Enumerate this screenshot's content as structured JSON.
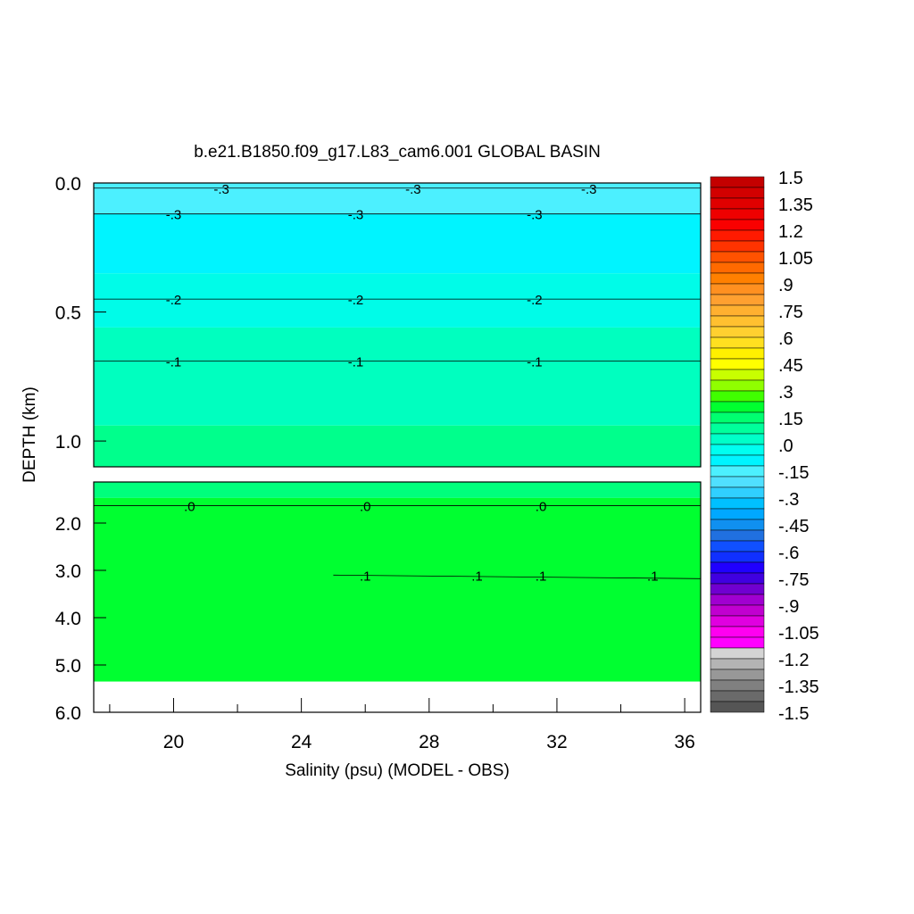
{
  "chart_data": {
    "type": "heatmap",
    "title": "b.e21.B1850.f09_g17.L83_cam6.001 GLOBAL BASIN",
    "xlabel": "Salinity (psu) (MODEL - OBS)",
    "ylabel": "DEPTH (km)",
    "xlim": [
      17.5,
      36.5
    ],
    "x_ticks": [
      20,
      24,
      28,
      32,
      36
    ],
    "x_tick_labels": [
      "20",
      "24",
      "28",
      "32",
      "36"
    ],
    "upper_panel": {
      "ylim": [
        0.0,
        1.1
      ],
      "y_ticks": [
        0.0,
        0.5,
        1.0
      ],
      "y_tick_labels": [
        "0.0",
        "0.5",
        "1.0"
      ]
    },
    "lower_panel": {
      "ylim": [
        1.1,
        6.0
      ],
      "y_ticks": [
        2.0,
        3.0,
        4.0,
        5.0,
        6.0
      ],
      "y_tick_labels": [
        "2.0",
        "3.0",
        "4.0",
        "5.0",
        "6.0"
      ],
      "no_data_below_depth": 5.35
    },
    "bands": [
      {
        "depth_from": 0.0,
        "depth_to": 0.12,
        "value": -0.33,
        "color": "#4cf0ff"
      },
      {
        "depth_from": 0.12,
        "depth_to": 0.35,
        "value": -0.27,
        "color": "#00f4ff"
      },
      {
        "depth_from": 0.35,
        "depth_to": 0.56,
        "value": -0.2,
        "color": "#00fce8"
      },
      {
        "depth_from": 0.56,
        "depth_to": 0.94,
        "value": -0.1,
        "color": "#00ffbf"
      },
      {
        "depth_from": 0.94,
        "depth_to": 1.1,
        "value": -0.03,
        "color": "#00ff8c"
      },
      {
        "depth_from": 1.1,
        "depth_to": 1.45,
        "value": -0.02,
        "color": "#00ff7c"
      },
      {
        "depth_from": 1.45,
        "depth_to": 5.35,
        "value": 0.02,
        "color": "#00ff30"
      }
    ],
    "contours": [
      {
        "label": "-.3",
        "depth": 0.02,
        "label_x": [
          21.5,
          27.5,
          33.0
        ]
      },
      {
        "label": "-.3",
        "depth": 0.12,
        "label_x": [
          20.0,
          25.7,
          31.3
        ]
      },
      {
        "label": "-.2",
        "depth": 0.45,
        "label_x": [
          20.0,
          25.7,
          31.3
        ]
      },
      {
        "label": "-.1",
        "depth": 0.69,
        "label_x": [
          20.0,
          25.7,
          31.3
        ]
      },
      {
        "label": ".0",
        "depth": 1.62,
        "label_x": [
          20.5,
          26.0,
          31.5
        ]
      },
      {
        "label": ".1",
        "depth": 3.1,
        "label_x": [
          26.0,
          29.5,
          31.5,
          35.0
        ]
      }
    ],
    "colorbar": {
      "labels": [
        "1.5",
        "1.35",
        "1.2",
        "1.05",
        ".9",
        ".75",
        ".6",
        ".45",
        ".3",
        ".15",
        ".0",
        "-.15",
        "-.3",
        "-.45",
        "-.6",
        "-.75",
        "-.9",
        "-1.05",
        "-1.2",
        "-1.35",
        "-1.5"
      ],
      "range": [
        -1.5,
        1.5
      ],
      "colors_top_to_bottom": [
        "#c40000",
        "#d20000",
        "#e00000",
        "#ee0000",
        "#fa0000",
        "#ff1a00",
        "#ff3300",
        "#ff5200",
        "#ff6a00",
        "#ff8000",
        "#ff9020",
        "#ffa030",
        "#ffb030",
        "#ffc030",
        "#ffd030",
        "#ffe020",
        "#fff000",
        "#ffff00",
        "#c8ff00",
        "#90ff00",
        "#40ff00",
        "#00ff30",
        "#00ff70",
        "#00ff9c",
        "#00ffc8",
        "#00fff0",
        "#00f4ff",
        "#4cf0ff",
        "#50e0ff",
        "#30d0ff",
        "#00c0ff",
        "#00a8ff",
        "#1090f0",
        "#2070e0",
        "#1050ff",
        "#1030ff",
        "#2000ff",
        "#4000e0",
        "#7000d0",
        "#a000d0",
        "#c000d0",
        "#e000e0",
        "#ff00f0",
        "#ff00ff",
        "#d4d4d4",
        "#b4b4b4",
        "#989898",
        "#808080",
        "#6a6a6a",
        "#555555"
      ]
    }
  }
}
